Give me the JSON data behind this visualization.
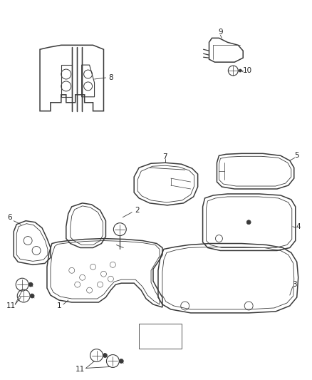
{
  "background_color": "#ffffff",
  "line_color": "#3a3a3a",
  "fig_width": 4.38,
  "fig_height": 5.33,
  "dpi": 100
}
